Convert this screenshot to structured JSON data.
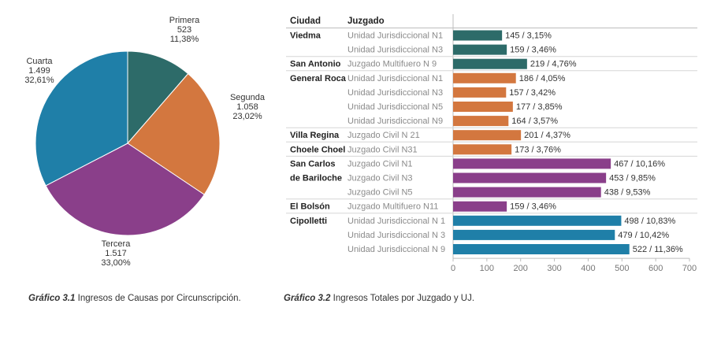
{
  "chart_data": [
    {
      "type": "pie",
      "title": "Ingresos de Causas por Circunscripción",
      "slices": [
        {
          "name": "Primera",
          "value_text": "523",
          "percent_text": "11,38%",
          "value": 523,
          "percent": 11.38,
          "color": "#2d6b69"
        },
        {
          "name": "Segunda",
          "value_text": "1.058",
          "percent_text": "23,02%",
          "value": 1058,
          "percent": 23.02,
          "color": "#d3773f"
        },
        {
          "name": "Tercera",
          "value_text": "1.517",
          "percent_text": "33,00%",
          "value": 1517,
          "percent": 33.0,
          "color": "#8a3f8a"
        },
        {
          "name": "Cuarta",
          "value_text": "1.499",
          "percent_text": "32,61%",
          "value": 1499,
          "percent": 32.61,
          "color": "#1f7fa8"
        }
      ]
    },
    {
      "type": "bar",
      "orientation": "horizontal",
      "title": "Ingresos Totales por Juzgado y UJ.",
      "header": {
        "city": "Ciudad",
        "court": "Juzgado"
      },
      "xlim": [
        0,
        700
      ],
      "xticks": [
        0,
        100,
        200,
        300,
        400,
        500,
        600,
        700
      ],
      "rows": [
        {
          "city": "Viedma",
          "court": "Unidad Jurisdiccional N1",
          "value": 145,
          "label": "145 / 3,15%",
          "color": "#2d6b69"
        },
        {
          "city": "",
          "court": "Unidad Jurisdiccional N3",
          "value": 159,
          "label": "159 / 3,46%",
          "color": "#2d6b69"
        },
        {
          "city": "San Antonio",
          "court": "Juzgado Multifuero N 9",
          "value": 219,
          "label": "219 / 4,76%",
          "color": "#2d6b69"
        },
        {
          "city": "General Roca",
          "court": "Unidad Jurisdiccional N1",
          "value": 186,
          "label": "186 / 4,05%",
          "color": "#d3773f"
        },
        {
          "city": "",
          "court": "Unidad Jurisdiccional N3",
          "value": 157,
          "label": "157 / 3,42%",
          "color": "#d3773f"
        },
        {
          "city": "",
          "court": "Unidad Jurisdiccional N5",
          "value": 177,
          "label": "177 / 3,85%",
          "color": "#d3773f"
        },
        {
          "city": "",
          "court": "Unidad Jurisdiccional N9",
          "value": 164,
          "label": "164 / 3,57%",
          "color": "#d3773f"
        },
        {
          "city": "Villa Regina",
          "court": "Juzgado Civil N 21",
          "value": 201,
          "label": "201 / 4,37%",
          "color": "#d3773f"
        },
        {
          "city": "Choele Choel",
          "court": "Juzgado Civil N31",
          "value": 173,
          "label": "173 / 3,76%",
          "color": "#d3773f"
        },
        {
          "city": "San Carlos",
          "court": "Juzgado Civil N1",
          "value": 467,
          "label": "467 / 10,16%",
          "color": "#8a3f8a"
        },
        {
          "city": "de Bariloche",
          "court": "Juzgado Civil N3",
          "value": 453,
          "label": "453 / 9,85%",
          "color": "#8a3f8a"
        },
        {
          "city": "",
          "court": "Juzgado Civil N5",
          "value": 438,
          "label": "438 / 9,53%",
          "color": "#8a3f8a"
        },
        {
          "city": "El Bolsón",
          "court": "Juzgado Multifuero N11",
          "value": 159,
          "label": "159 / 3,46%",
          "color": "#8a3f8a"
        },
        {
          "city": "Cipolletti",
          "court": "Unidad Jurisdiccional N 1",
          "value": 498,
          "label": "498 / 10,83%",
          "color": "#1f7fa8"
        },
        {
          "city": "",
          "court": "Unidad Jurisdiccional N 3",
          "value": 479,
          "label": "479 / 10,42%",
          "color": "#1f7fa8"
        },
        {
          "city": "",
          "court": "Unidad Jurisdiccional N 9",
          "value": 522,
          "label": "522 / 11,36%",
          "color": "#1f7fa8"
        }
      ]
    }
  ],
  "captions": {
    "left": {
      "label": "Gráfico 3.1",
      "text": " Ingresos de Causas por Circunscripción."
    },
    "right": {
      "label": "Gráfico 3.2",
      "text": " Ingresos Totales por Juzgado y UJ."
    }
  }
}
